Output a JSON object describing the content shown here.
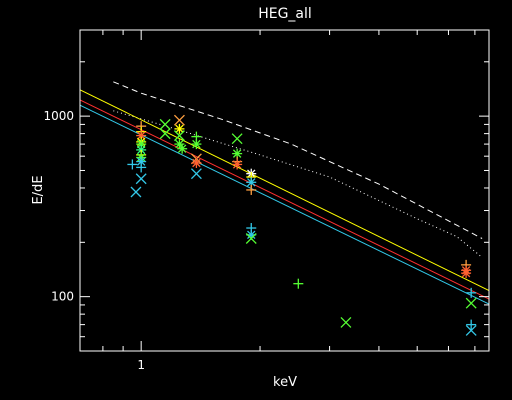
{
  "chart_data": {
    "type": "scatter",
    "title": "HEG_all",
    "xlabel": "keV",
    "ylabel": "E/dE",
    "xscale": "log",
    "yscale": "log",
    "xlim": [
      0.7,
      7.6
    ],
    "ylim": [
      50,
      3000
    ],
    "x_ticks": [
      {
        "value": 1,
        "label": "1"
      }
    ],
    "y_ticks": [
      {
        "value": 100,
        "label": "100"
      },
      {
        "value": 1000,
        "label": "1000"
      }
    ],
    "grid": false,
    "background": "#000000",
    "axis_color": "#ffffff",
    "lines": [
      {
        "style": "dashed",
        "color": "#ffffff",
        "x": [
          0.85,
          1.0,
          1.6,
          2.4,
          4.0,
          7.3
        ],
        "y": [
          1550,
          1340,
          960,
          700,
          420,
          210
        ]
      },
      {
        "style": "dotted",
        "color": "#ffffff",
        "x": [
          0.85,
          1.2,
          2.0,
          3.0,
          5.0,
          6.3,
          7.3
        ],
        "y": [
          1070,
          860,
          610,
          460,
          270,
          215,
          165
        ]
      },
      {
        "style": "solid",
        "color": "#ffff00",
        "x": [
          0.7,
          7.6
        ],
        "y": [
          1400,
          108
        ]
      },
      {
        "style": "solid",
        "color": "#ff3030",
        "x": [
          0.7,
          7.6
        ],
        "y": [
          1230,
          97
        ]
      },
      {
        "style": "solid",
        "color": "#33c8e8",
        "x": [
          0.7,
          7.6
        ],
        "y": [
          1150,
          91
        ]
      }
    ],
    "markers": [
      {
        "m": "plus",
        "color": "#33c8e8",
        "x": 0.95,
        "y": 540
      },
      {
        "m": "x",
        "color": "#33c8e8",
        "x": 0.97,
        "y": 380
      },
      {
        "m": "x",
        "color": "#33c8e8",
        "x": 1.0,
        "y": 450
      },
      {
        "m": "plus",
        "color": "#ffa040",
        "x": 1.0,
        "y": 880
      },
      {
        "m": "plus",
        "color": "#ffff00",
        "x": 1.0,
        "y": 820
      },
      {
        "m": "star",
        "color": "#ff6030",
        "x": 1.0,
        "y": 780
      },
      {
        "m": "star",
        "color": "#ffff00",
        "x": 1.0,
        "y": 720
      },
      {
        "m": "star",
        "color": "#55ff33",
        "x": 1.0,
        "y": 700
      },
      {
        "m": "star",
        "color": "#33ff88",
        "x": 1.0,
        "y": 650
      },
      {
        "m": "plus",
        "color": "#ffff00",
        "x": 1.0,
        "y": 610
      },
      {
        "m": "star",
        "color": "#55ff33",
        "x": 1.0,
        "y": 590
      },
      {
        "m": "star",
        "color": "#33c8e8",
        "x": 1.0,
        "y": 560
      },
      {
        "m": "plus",
        "color": "#33c8e8",
        "x": 1.0,
        "y": 520
      },
      {
        "m": "x",
        "color": "#55ff33",
        "x": 1.15,
        "y": 900
      },
      {
        "m": "x",
        "color": "#55ff33",
        "x": 1.15,
        "y": 800
      },
      {
        "m": "x",
        "color": "#ffa040",
        "x": 1.25,
        "y": 950
      },
      {
        "m": "star",
        "color": "#ffff00",
        "x": 1.25,
        "y": 850
      },
      {
        "m": "x",
        "color": "#55ff33",
        "x": 1.25,
        "y": 780
      },
      {
        "m": "star",
        "color": "#55ff33",
        "x": 1.25,
        "y": 700
      },
      {
        "m": "star",
        "color": "#55ff33",
        "x": 1.27,
        "y": 660
      },
      {
        "m": "plus",
        "color": "#55ff33",
        "x": 1.38,
        "y": 770
      },
      {
        "m": "star",
        "color": "#55ff33",
        "x": 1.38,
        "y": 700
      },
      {
        "m": "x",
        "color": "#ffa040",
        "x": 1.38,
        "y": 580
      },
      {
        "m": "star",
        "color": "#ff6030",
        "x": 1.38,
        "y": 550
      },
      {
        "m": "x",
        "color": "#33c8e8",
        "x": 1.38,
        "y": 480
      },
      {
        "m": "x",
        "color": "#55ff33",
        "x": 1.75,
        "y": 750
      },
      {
        "m": "star",
        "color": "#55ff33",
        "x": 1.75,
        "y": 620
      },
      {
        "m": "plus",
        "color": "#ffa040",
        "x": 1.75,
        "y": 560
      },
      {
        "m": "star",
        "color": "#ff6030",
        "x": 1.75,
        "y": 540
      },
      {
        "m": "star",
        "color": "#ffffff",
        "x": 1.9,
        "y": 480
      },
      {
        "m": "plus",
        "color": "#ffff00",
        "x": 1.9,
        "y": 460
      },
      {
        "m": "star",
        "color": "#33c8e8",
        "x": 1.9,
        "y": 430
      },
      {
        "m": "plus",
        "color": "#ffa040",
        "x": 1.9,
        "y": 390
      },
      {
        "m": "plus",
        "color": "#33c8e8",
        "x": 1.9,
        "y": 240
      },
      {
        "m": "star",
        "color": "#33c8e8",
        "x": 1.9,
        "y": 220
      },
      {
        "m": "x",
        "color": "#55ff33",
        "x": 1.9,
        "y": 210
      },
      {
        "m": "plus",
        "color": "#55ff33",
        "x": 2.5,
        "y": 118
      },
      {
        "m": "x",
        "color": "#55ff33",
        "x": 3.3,
        "y": 72
      },
      {
        "m": "plus",
        "color": "#ffa040",
        "x": 6.65,
        "y": 150
      },
      {
        "m": "star",
        "color": "#ff6030",
        "x": 6.65,
        "y": 140
      },
      {
        "m": "star",
        "color": "#ff6030",
        "x": 6.65,
        "y": 135
      },
      {
        "m": "x",
        "color": "#55ff33",
        "x": 6.85,
        "y": 92
      },
      {
        "m": "plus",
        "color": "#33c8e8",
        "x": 6.85,
        "y": 105
      },
      {
        "m": "plus",
        "color": "#33c8e8",
        "x": 6.85,
        "y": 70
      },
      {
        "m": "x",
        "color": "#33c8e8",
        "x": 6.85,
        "y": 65
      }
    ]
  }
}
